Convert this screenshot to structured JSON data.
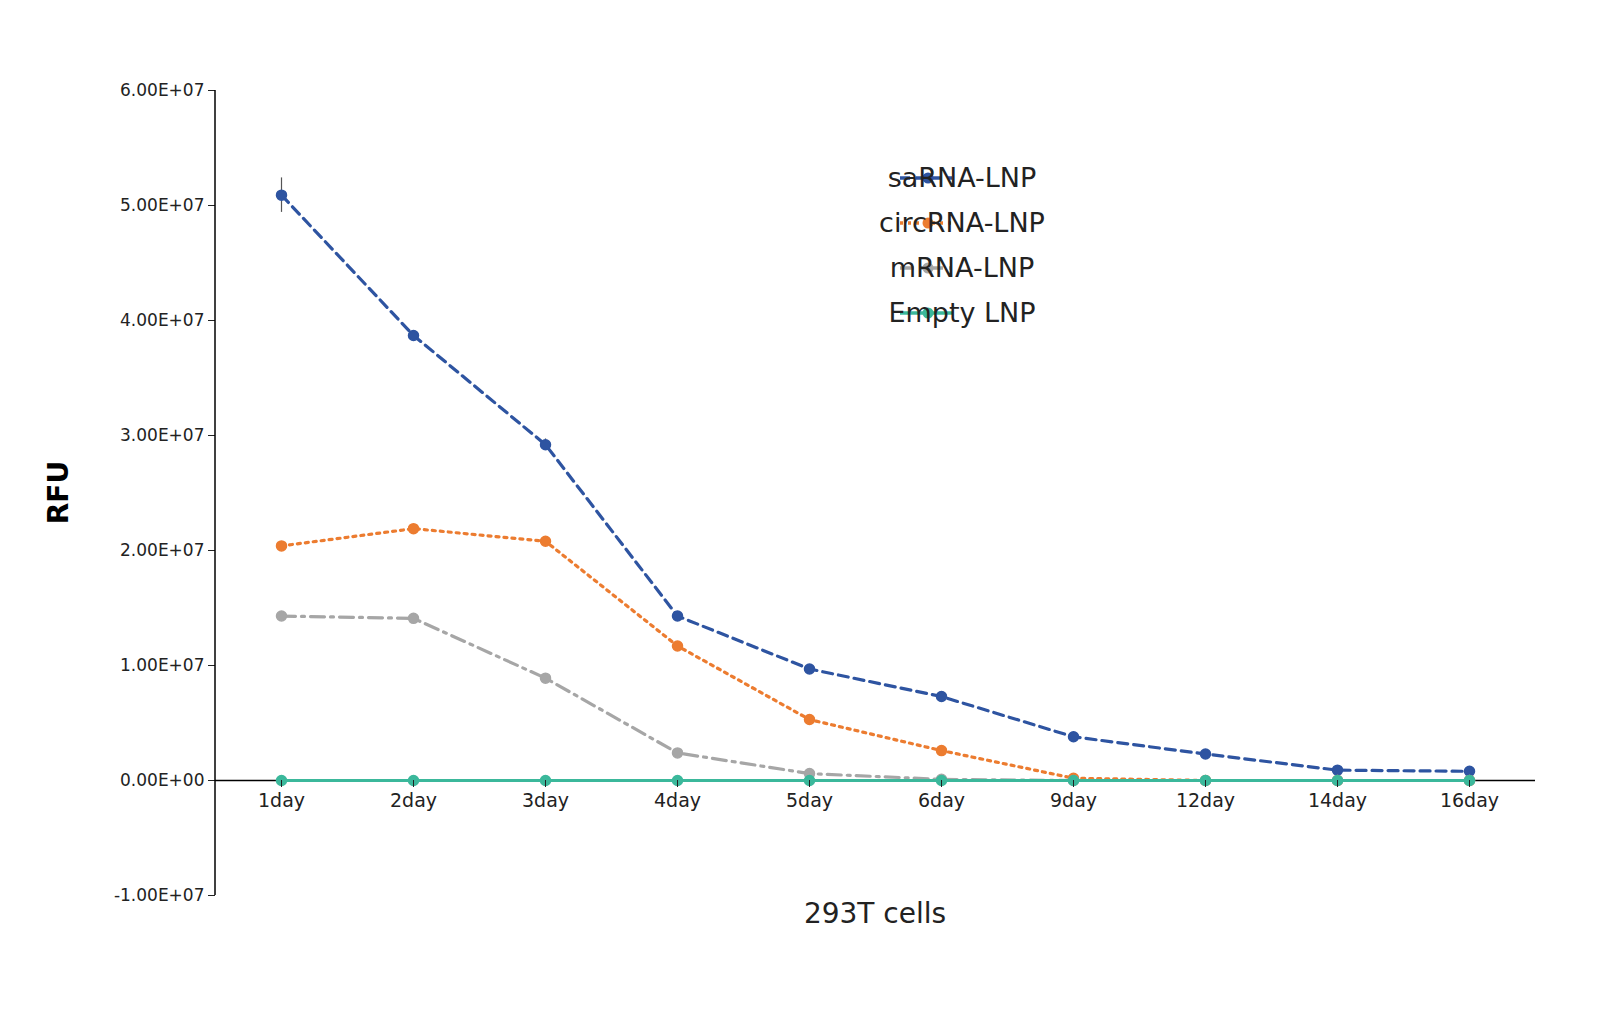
{
  "chart_data": {
    "type": "line",
    "x_label": "293T cells",
    "y_label": "RFU",
    "categories": [
      "1day",
      "2day",
      "3day",
      "4day",
      "5day",
      "6day",
      "9day",
      "12day",
      "14day",
      "16day"
    ],
    "ylim": [
      -10000000,
      60000000
    ],
    "yticks": [
      {
        "value": -10000000,
        "label": "-1.00E+07"
      },
      {
        "value": 0,
        "label": "0.00E+00"
      },
      {
        "value": 10000000,
        "label": "1.00E+07"
      },
      {
        "value": 20000000,
        "label": "2.00E+07"
      },
      {
        "value": 30000000,
        "label": "3.00E+07"
      },
      {
        "value": 40000000,
        "label": "4.00E+07"
      },
      {
        "value": 50000000,
        "label": "5.00E+07"
      },
      {
        "value": 60000000,
        "label": "6.00E+07"
      }
    ],
    "grid": false,
    "legend": "upper right",
    "series": [
      {
        "name": "saRNA-LNP",
        "color": "#2e54a1",
        "line_style": "dashed",
        "marker": "circle",
        "values": [
          50900000,
          38700000,
          29200000,
          14300000,
          9700000,
          7300000,
          3800000,
          2300000,
          900000,
          800000
        ],
        "errors": [
          1500000,
          400000,
          500000,
          300000,
          200000,
          200000,
          100000,
          100000,
          100000,
          100000
        ]
      },
      {
        "name": "circRNA-LNP",
        "color": "#ec7c30",
        "line_style": "dotted",
        "marker": "circle",
        "values": [
          20400000,
          21900000,
          20800000,
          11700000,
          5300000,
          2600000,
          200000,
          0,
          0,
          0
        ]
      },
      {
        "name": "mRNA-LNP",
        "color": "#a6a6a6",
        "line_style": "dashdot",
        "marker": "circle",
        "values": [
          14300000,
          14100000,
          8900000,
          2400000,
          600000,
          100000,
          0,
          0,
          0,
          0
        ]
      },
      {
        "name": "Empty LNP",
        "color": "#3bb89b",
        "line_style": "solid",
        "marker": "circle",
        "values": [
          0,
          0,
          0,
          0,
          0,
          0,
          0,
          0,
          0,
          0
        ]
      }
    ]
  }
}
